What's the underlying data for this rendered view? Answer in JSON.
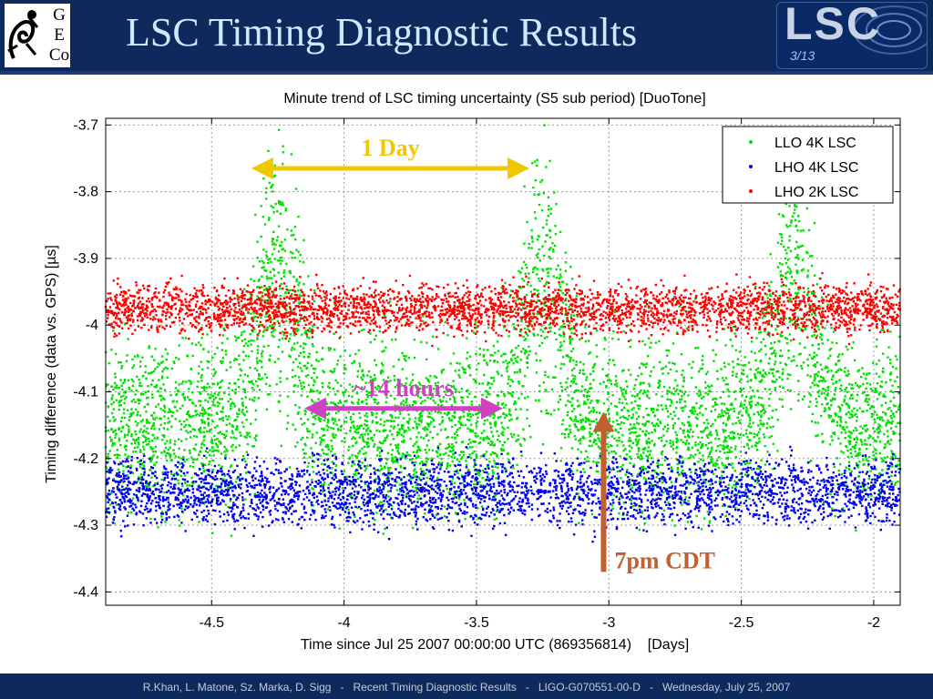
{
  "slide": {
    "title": "LSC Timing Diagnostic Results",
    "logo_left_letters": [
      "G",
      "E",
      "Co"
    ],
    "logo_right_text": "LSC",
    "page_number": "3/13",
    "footer": "R.Khan, L. Matone, Sz. Marka, D. Sigg   -   Recent Timing Diagnostic Results   -   LIGO-G070551-00-D   -   Wednesday, July 25, 2007",
    "colors": {
      "header_bg": "#0e2a5c",
      "title": "#cfe8ff"
    }
  },
  "chart_data": {
    "type": "scatter",
    "title": "Minute trend of LSC timing uncertainty (S5 sub period) [DuoTone]",
    "xlabel": "Time since Jul 25 2007 00:00:00 UTC (869356814)    [Days]",
    "ylabel": "Timing difference (data vs. GPS) [µs]",
    "xlim": [
      -4.9,
      -1.9
    ],
    "ylim": [
      -4.42,
      -3.69
    ],
    "xticks": [
      -4.5,
      -4,
      -3.5,
      -3,
      -2.5,
      -2
    ],
    "xtick_labels": [
      "-4.5",
      "-4",
      "-3.5",
      "-3",
      "-2.5",
      "-2"
    ],
    "yticks": [
      -3.7,
      -3.8,
      -3.9,
      -4,
      -4.1,
      -4.2,
      -4.3,
      -4.4
    ],
    "ytick_labels": [
      "-3.7",
      "-3.8",
      "-3.9",
      "-4",
      "-4.1",
      "-4.2",
      "-4.3",
      "-4.4"
    ],
    "grid": true,
    "legend_position": "top-right",
    "series": [
      {
        "name": "LLO 4K LSC",
        "color": "#00e000",
        "description_values": {
          "baseline_mean": -4.15,
          "baseline_spread": 0.09,
          "day_peaks_at": [
            -4.25,
            -3.25,
            -2.3
          ],
          "peak_mean": -3.92
        }
      },
      {
        "name": "LHO 4K LSC",
        "color": "#0000ee",
        "mean": -4.25,
        "spread": 0.025
      },
      {
        "name": "LHO 2K LSC",
        "color": "#ff0000",
        "mean": -3.975,
        "spread": 0.018
      }
    ],
    "annotations": [
      {
        "text": "1 Day",
        "color": "#f0c800",
        "type": "double-arrow",
        "from_x": -4.35,
        "to_x": -3.3,
        "y": -3.765
      },
      {
        "text": "~14 hours",
        "color": "#d040c0",
        "type": "double-arrow",
        "from_x": -4.15,
        "to_x": -3.4,
        "y": -4.125
      },
      {
        "text": "7pm CDT",
        "color": "#c06030",
        "type": "up-arrow",
        "x": -3.02,
        "from_y": -4.37,
        "to_y": -4.13
      }
    ]
  }
}
